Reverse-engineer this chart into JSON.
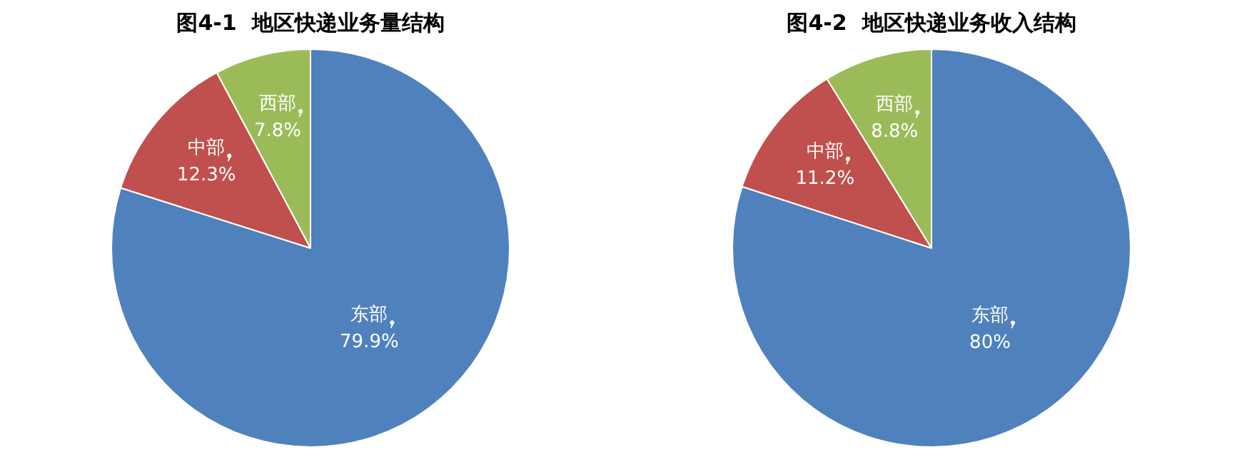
{
  "chart_data": [
    {
      "type": "pie",
      "title": "图4-1  地区快递业务量结构",
      "categories": [
        "东部",
        "中部",
        "西部"
      ],
      "values": [
        79.9,
        12.3,
        7.8
      ],
      "colors": [
        "#4f81bd",
        "#c0504d",
        "#9bbb59"
      ],
      "value_labels": [
        "79.9%",
        "12.3%",
        "7.8%"
      ],
      "legend": false
    },
    {
      "type": "pie",
      "title": "图4-2  地区快递业务收入结构",
      "categories": [
        "东部",
        "中部",
        "西部"
      ],
      "values": [
        80,
        11.2,
        8.8
      ],
      "colors": [
        "#4f81bd",
        "#c0504d",
        "#9bbb59"
      ],
      "value_labels": [
        "80%",
        "11.2%",
        "8.8%"
      ],
      "legend": false
    }
  ]
}
